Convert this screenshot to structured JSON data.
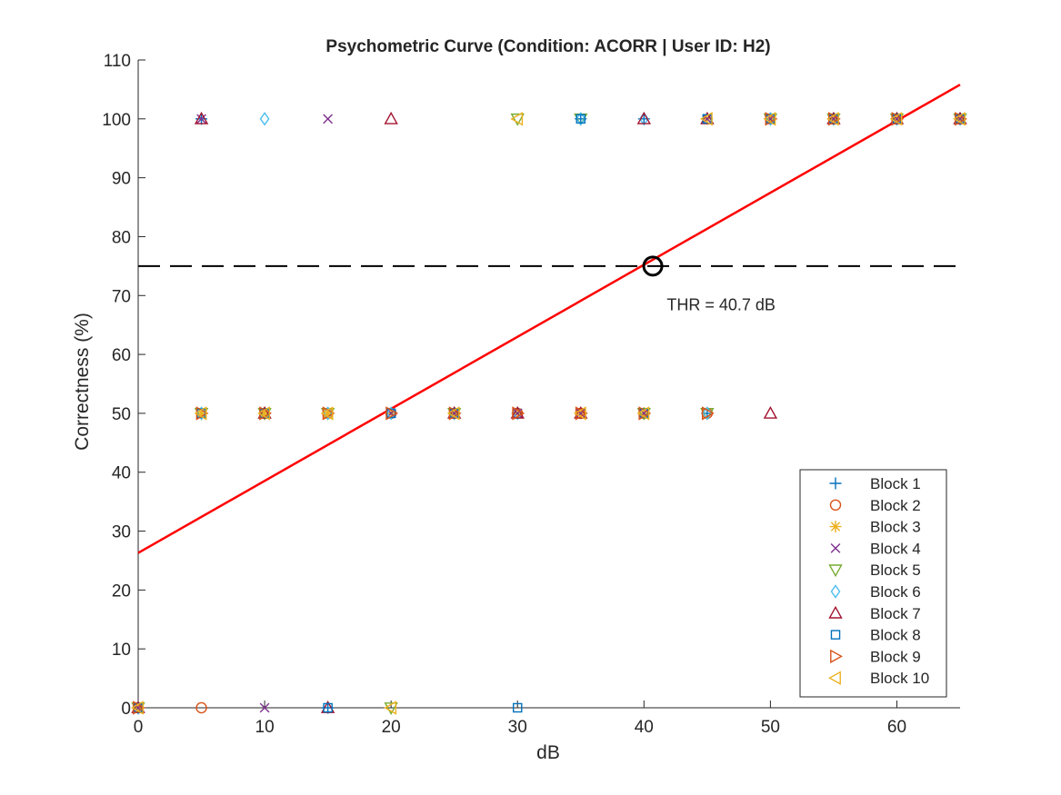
{
  "chart_data": {
    "type": "scatter",
    "title": "Psychometric Curve (Condition: ACORR | User ID: H2)",
    "xlabel": "dB",
    "ylabel": "Correctness (%)",
    "xlim": [
      0,
      65
    ],
    "ylim": [
      0,
      110
    ],
    "xticks": [
      0,
      10,
      20,
      30,
      40,
      50,
      60
    ],
    "yticks": [
      0,
      10,
      20,
      30,
      40,
      50,
      60,
      70,
      80,
      90,
      100,
      110
    ],
    "grid": false,
    "legend_location": "bottom-right",
    "series": [
      {
        "name": "Block 1",
        "marker": "plus",
        "color": "#0072BD",
        "points": [
          [
            0,
            0
          ],
          [
            5,
            100
          ],
          [
            10,
            50
          ],
          [
            15,
            0
          ],
          [
            20,
            50
          ],
          [
            25,
            50
          ],
          [
            30,
            50
          ],
          [
            35,
            100
          ],
          [
            40,
            100
          ],
          [
            45,
            50
          ],
          [
            50,
            100
          ],
          [
            55,
            100
          ],
          [
            60,
            100
          ],
          [
            65,
            100
          ]
        ]
      },
      {
        "name": "Block 2",
        "marker": "circle",
        "color": "#D95319",
        "points": [
          [
            0,
            0
          ],
          [
            5,
            0
          ],
          [
            10,
            50
          ],
          [
            15,
            50
          ],
          [
            20,
            50
          ],
          [
            25,
            50
          ],
          [
            30,
            50
          ],
          [
            35,
            50
          ],
          [
            40,
            50
          ],
          [
            45,
            50
          ],
          [
            50,
            100
          ],
          [
            55,
            100
          ],
          [
            60,
            100
          ],
          [
            65,
            100
          ]
        ]
      },
      {
        "name": "Block 3",
        "marker": "asterisk",
        "color": "#EDB120",
        "points": [
          [
            0,
            0
          ],
          [
            5,
            50
          ],
          [
            10,
            50
          ],
          [
            15,
            50
          ],
          [
            20,
            50
          ],
          [
            25,
            50
          ],
          [
            30,
            50
          ],
          [
            35,
            50
          ],
          [
            40,
            50
          ],
          [
            45,
            100
          ],
          [
            50,
            100
          ],
          [
            55,
            100
          ],
          [
            60,
            100
          ],
          [
            65,
            100
          ]
        ]
      },
      {
        "name": "Block 4",
        "marker": "x",
        "color": "#7E2F8E",
        "points": [
          [
            0,
            0
          ],
          [
            5,
            100
          ],
          [
            10,
            0
          ],
          [
            15,
            100
          ],
          [
            20,
            50
          ],
          [
            25,
            50
          ],
          [
            30,
            50
          ],
          [
            35,
            50
          ],
          [
            40,
            50
          ],
          [
            45,
            100
          ],
          [
            50,
            100
          ],
          [
            55,
            100
          ],
          [
            60,
            100
          ],
          [
            65,
            100
          ]
        ]
      },
      {
        "name": "Block 5",
        "marker": "triangle-down",
        "color": "#77AC30",
        "points": [
          [
            0,
            0
          ],
          [
            5,
            50
          ],
          [
            10,
            50
          ],
          [
            15,
            50
          ],
          [
            20,
            0
          ],
          [
            25,
            50
          ],
          [
            30,
            100
          ],
          [
            35,
            100
          ],
          [
            40,
            50
          ],
          [
            45,
            50
          ],
          [
            50,
            100
          ],
          [
            55,
            100
          ],
          [
            60,
            100
          ],
          [
            65,
            100
          ]
        ]
      },
      {
        "name": "Block 6",
        "marker": "diamond",
        "color": "#4DBEEE",
        "points": [
          [
            0,
            0
          ],
          [
            5,
            50
          ],
          [
            10,
            100
          ],
          [
            15,
            50
          ],
          [
            20,
            50
          ],
          [
            25,
            50
          ],
          [
            30,
            50
          ],
          [
            35,
            100
          ],
          [
            40,
            100
          ],
          [
            45,
            50
          ],
          [
            50,
            100
          ],
          [
            55,
            100
          ],
          [
            60,
            100
          ],
          [
            65,
            100
          ]
        ]
      },
      {
        "name": "Block 7",
        "marker": "triangle-up",
        "color": "#A2142F",
        "points": [
          [
            0,
            0
          ],
          [
            5,
            100
          ],
          [
            10,
            50
          ],
          [
            15,
            0
          ],
          [
            20,
            100
          ],
          [
            25,
            50
          ],
          [
            30,
            50
          ],
          [
            35,
            50
          ],
          [
            40,
            100
          ],
          [
            45,
            100
          ],
          [
            50,
            50
          ],
          [
            55,
            100
          ],
          [
            60,
            100
          ],
          [
            65,
            100
          ]
        ]
      },
      {
        "name": "Block 8",
        "marker": "square",
        "color": "#0072BD",
        "points": [
          [
            0,
            0
          ],
          [
            5,
            50
          ],
          [
            10,
            50
          ],
          [
            15,
            0
          ],
          [
            20,
            50
          ],
          [
            25,
            50
          ],
          [
            30,
            0
          ],
          [
            35,
            100
          ],
          [
            40,
            50
          ],
          [
            45,
            100
          ],
          [
            50,
            100
          ],
          [
            55,
            100
          ],
          [
            60,
            100
          ],
          [
            65,
            100
          ]
        ]
      },
      {
        "name": "Block 9",
        "marker": "triangle-right",
        "color": "#D95319",
        "points": [
          [
            0,
            0
          ],
          [
            5,
            50
          ],
          [
            10,
            50
          ],
          [
            15,
            50
          ],
          [
            20,
            50
          ],
          [
            25,
            50
          ],
          [
            30,
            50
          ],
          [
            35,
            50
          ],
          [
            40,
            50
          ],
          [
            45,
            50
          ],
          [
            50,
            100
          ],
          [
            55,
            100
          ],
          [
            60,
            100
          ],
          [
            65,
            100
          ]
        ]
      },
      {
        "name": "Block 10",
        "marker": "triangle-left",
        "color": "#EDB120",
        "points": [
          [
            0,
            0
          ],
          [
            5,
            50
          ],
          [
            10,
            50
          ],
          [
            15,
            50
          ],
          [
            20,
            0
          ],
          [
            25,
            50
          ],
          [
            30,
            100
          ],
          [
            35,
            50
          ],
          [
            40,
            50
          ],
          [
            45,
            100
          ],
          [
            50,
            100
          ],
          [
            55,
            100
          ],
          [
            60,
            100
          ],
          [
            65,
            100
          ]
        ]
      }
    ],
    "fit_line": {
      "color": "#FF0000",
      "x": [
        0,
        65
      ],
      "y": [
        26.3,
        105.8
      ]
    },
    "threshold_line": {
      "y": 75,
      "style": "dashed",
      "color": "#000000"
    },
    "threshold_point": {
      "x": 40.7,
      "y": 75,
      "marker": "circle",
      "color": "#000000"
    },
    "annotation": {
      "text": "THR = 40.7 dB",
      "x": 41.8,
      "y": 67.5
    }
  }
}
